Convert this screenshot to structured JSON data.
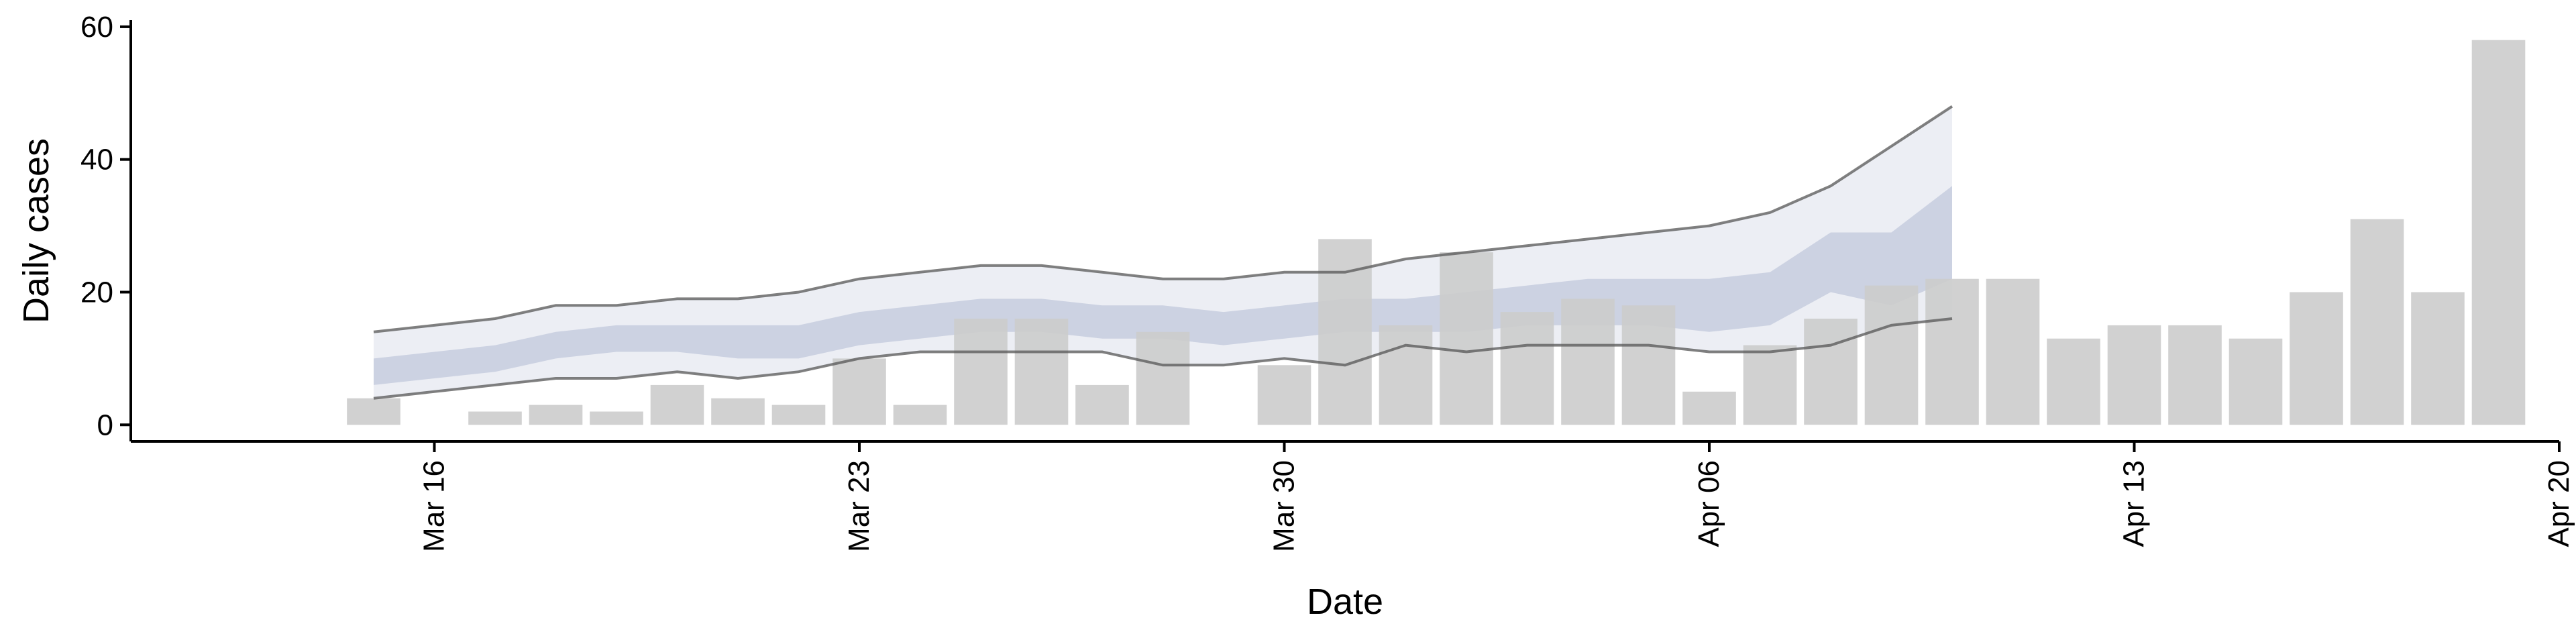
{
  "chart_data": {
    "type": "bar",
    "xlabel": "Date",
    "ylabel": "Daily cases",
    "ylim": [
      -2.5,
      61
    ],
    "xlim": [
      "2020-03-11",
      "2020-04-20"
    ],
    "x_ticks": [
      "Mar 16",
      "Mar 23",
      "Mar 30",
      "Apr 06",
      "Apr 13",
      "Apr 20"
    ],
    "x_tick_dates": [
      "2020-03-16",
      "2020-03-23",
      "2020-03-30",
      "2020-04-06",
      "2020-04-13",
      "2020-04-20"
    ],
    "y_ticks": [
      0,
      20,
      40,
      60
    ],
    "grid": false,
    "colors": {
      "bars": "#cccccc",
      "band_outer": "#dfe2ec",
      "band_inner": "#b8bfd6",
      "line": "#555555"
    },
    "bars": {
      "name": "Daily cases",
      "dates": [
        "2020-03-15",
        "2020-03-16",
        "2020-03-17",
        "2020-03-18",
        "2020-03-19",
        "2020-03-20",
        "2020-03-21",
        "2020-03-22",
        "2020-03-23",
        "2020-03-24",
        "2020-03-25",
        "2020-03-26",
        "2020-03-27",
        "2020-03-28",
        "2020-03-29",
        "2020-03-30",
        "2020-03-31",
        "2020-04-01",
        "2020-04-02",
        "2020-04-03",
        "2020-04-04",
        "2020-04-05",
        "2020-04-06",
        "2020-04-07",
        "2020-04-08",
        "2020-04-09",
        "2020-04-10",
        "2020-04-11",
        "2020-04-12",
        "2020-04-13",
        "2020-04-14",
        "2020-04-15",
        "2020-04-16",
        "2020-04-17",
        "2020-04-18",
        "2020-04-19"
      ],
      "values": [
        4,
        0,
        2,
        3,
        2,
        6,
        4,
        3,
        10,
        3,
        16,
        16,
        6,
        14,
        0,
        9,
        28,
        15,
        26,
        17,
        19,
        18,
        5,
        12,
        16,
        21,
        22,
        22,
        13,
        15,
        15,
        13,
        20,
        31,
        20,
        58
      ]
    },
    "forecast": {
      "dates": [
        "2020-03-15",
        "2020-03-16",
        "2020-03-17",
        "2020-03-18",
        "2020-03-19",
        "2020-03-20",
        "2020-03-21",
        "2020-03-22",
        "2020-03-23",
        "2020-03-24",
        "2020-03-25",
        "2020-03-26",
        "2020-03-27",
        "2020-03-28",
        "2020-03-29",
        "2020-03-30",
        "2020-03-31",
        "2020-04-01",
        "2020-04-02",
        "2020-04-03",
        "2020-04-04",
        "2020-04-05",
        "2020-04-06",
        "2020-04-07",
        "2020-04-08",
        "2020-04-09",
        "2020-04-10"
      ],
      "upper_90": [
        14,
        15,
        16,
        18,
        18,
        19,
        19,
        20,
        22,
        23,
        24,
        24,
        23,
        22,
        22,
        23,
        23,
        25,
        26,
        27,
        28,
        29,
        30,
        32,
        36,
        42,
        48
      ],
      "lower_90": [
        4,
        5,
        6,
        7,
        7,
        8,
        7,
        8,
        10,
        11,
        11,
        11,
        11,
        9,
        9,
        10,
        9,
        12,
        11,
        12,
        12,
        12,
        11,
        11,
        12,
        15,
        16
      ],
      "upper_50": [
        10,
        11,
        12,
        14,
        15,
        15,
        15,
        15,
        17,
        18,
        19,
        19,
        18,
        18,
        17,
        18,
        19,
        19,
        20,
        21,
        22,
        22,
        22,
        23,
        29,
        29,
        36
      ],
      "lower_50": [
        6,
        7,
        8,
        10,
        11,
        11,
        10,
        10,
        12,
        13,
        14,
        14,
        13,
        13,
        12,
        13,
        14,
        14,
        14,
        15,
        15,
        15,
        14,
        15,
        20,
        18,
        22
      ]
    }
  }
}
